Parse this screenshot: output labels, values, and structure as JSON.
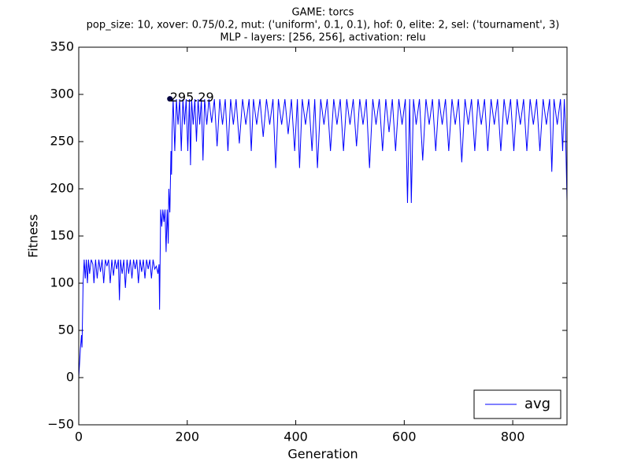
{
  "chart_data": {
    "type": "line",
    "title": [
      "GAME: torcs",
      "pop_size: 10, xover: 0.75/0.2, mut: ('uniform', 0.1, 0.1), hof: 0, elite: 2, sel: ('tournament', 3)",
      "MLP - layers: [256, 256], activation: relu"
    ],
    "xlabel": "Generation",
    "ylabel": "Fitness",
    "xlim": [
      0,
      900
    ],
    "ylim": [
      -50,
      350
    ],
    "xticks": [
      0,
      200,
      400,
      600,
      800
    ],
    "yticks": [
      {
        "value": -50,
        "label": "−50"
      },
      0,
      50,
      100,
      150,
      200,
      250,
      300,
      350
    ],
    "grid": false,
    "legend": "lower right",
    "annotation": {
      "x": 168,
      "value": 295.29
    },
    "x": [
      0,
      3,
      5,
      6,
      8,
      10,
      12,
      14,
      16,
      18,
      20,
      23,
      26,
      28,
      31,
      34,
      37,
      40,
      43,
      46,
      49,
      52,
      55,
      58,
      61,
      64,
      67,
      70,
      73,
      75,
      77,
      80,
      83,
      86,
      89,
      92,
      95,
      98,
      101,
      104,
      107,
      110,
      113,
      116,
      119,
      122,
      125,
      128,
      131,
      134,
      137,
      140,
      143,
      146,
      148,
      149,
      151,
      153,
      155,
      157,
      159,
      161,
      163,
      165,
      166,
      168,
      170,
      171,
      172,
      174,
      177,
      180,
      183,
      186,
      189,
      192,
      195,
      198,
      201,
      204,
      206,
      208,
      211,
      214,
      217,
      220,
      223,
      226,
      229,
      232,
      236,
      240,
      245,
      250,
      255,
      260,
      265,
      270,
      275,
      280,
      285,
      290,
      296,
      302,
      308,
      314,
      318,
      322,
      328,
      334,
      340,
      346,
      352,
      358,
      363,
      368,
      374,
      380,
      386,
      392,
      398,
      403,
      407,
      412,
      418,
      424,
      430,
      435,
      440,
      446,
      452,
      458,
      464,
      470,
      476,
      482,
      488,
      494,
      500,
      506,
      512,
      518,
      524,
      530,
      536,
      542,
      548,
      554,
      560,
      566,
      572,
      578,
      584,
      590,
      596,
      602,
      606,
      610,
      613,
      617,
      622,
      628,
      634,
      640,
      646,
      652,
      658,
      664,
      670,
      676,
      682,
      688,
      694,
      700,
      706,
      712,
      718,
      724,
      730,
      736,
      742,
      748,
      754,
      760,
      766,
      772,
      778,
      784,
      790,
      796,
      802,
      808,
      814,
      820,
      826,
      832,
      838,
      844,
      850,
      856,
      862,
      868,
      872,
      876,
      882,
      888,
      892,
      895,
      897,
      899,
      900
    ],
    "series": [
      {
        "name": "avg",
        "color": "#0000ff",
        "values": [
          0,
          30,
          45,
          32,
          100,
          125,
          105,
          125,
          100,
          125,
          110,
          125,
          120,
          100,
          125,
          105,
          125,
          112,
          125,
          100,
          125,
          118,
          125,
          100,
          125,
          108,
          125,
          115,
          125,
          82,
          125,
          110,
          125,
          95,
          125,
          110,
          125,
          105,
          125,
          115,
          125,
          100,
          125,
          112,
          125,
          105,
          125,
          115,
          125,
          105,
          125,
          115,
          118,
          110,
          120,
          72,
          178,
          160,
          178,
          165,
          178,
          133,
          178,
          142,
          200,
          175,
          240,
          215,
          260,
          295,
          240,
          295,
          268,
          295,
          240,
          295,
          268,
          295,
          240,
          295,
          225,
          295,
          268,
          295,
          250,
          295,
          268,
          295,
          230,
          295,
          268,
          295,
          270,
          295,
          245,
          295,
          268,
          295,
          240,
          295,
          268,
          295,
          248,
          295,
          268,
          295,
          240,
          295,
          268,
          295,
          255,
          295,
          268,
          295,
          222,
          295,
          268,
          295,
          258,
          295,
          240,
          295,
          222,
          295,
          268,
          295,
          240,
          295,
          222,
          295,
          268,
          295,
          240,
          295,
          268,
          295,
          240,
          295,
          268,
          295,
          245,
          295,
          268,
          295,
          222,
          295,
          268,
          295,
          240,
          295,
          260,
          295,
          240,
          295,
          268,
          295,
          185,
          295,
          185,
          295,
          268,
          295,
          230,
          295,
          268,
          295,
          240,
          295,
          268,
          295,
          240,
          295,
          268,
          295,
          228,
          295,
          268,
          295,
          240,
          295,
          268,
          295,
          240,
          295,
          268,
          295,
          240,
          295,
          268,
          295,
          240,
          295,
          268,
          295,
          240,
          295,
          268,
          295,
          240,
          295,
          268,
          295,
          218,
          295,
          268,
          295,
          240,
          295,
          268,
          215,
          187
        ]
      }
    ]
  }
}
